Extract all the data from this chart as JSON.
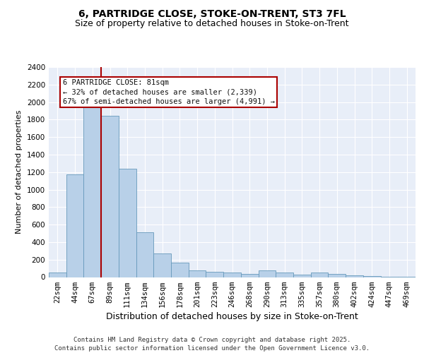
{
  "title_line1": "6, PARTRIDGE CLOSE, STOKE-ON-TRENT, ST3 7FL",
  "title_line2": "Size of property relative to detached houses in Stoke-on-Trent",
  "xlabel": "Distribution of detached houses by size in Stoke-on-Trent",
  "ylabel": "Number of detached properties",
  "footer_line1": "Contains HM Land Registry data © Crown copyright and database right 2025.",
  "footer_line2": "Contains public sector information licensed under the Open Government Licence v3.0.",
  "annotation_line1": "6 PARTRIDGE CLOSE: 81sqm",
  "annotation_line2": "← 32% of detached houses are smaller (2,339)",
  "annotation_line3": "67% of semi-detached houses are larger (4,991) →",
  "bar_values": [
    50,
    1175,
    1960,
    1840,
    1240,
    510,
    270,
    165,
    75,
    60,
    50,
    40,
    75,
    55,
    30,
    50,
    40,
    20,
    10,
    5,
    2
  ],
  "categories": [
    "22sqm",
    "44sqm",
    "67sqm",
    "89sqm",
    "111sqm",
    "134sqm",
    "156sqm",
    "178sqm",
    "201sqm",
    "223sqm",
    "246sqm",
    "268sqm",
    "290sqm",
    "313sqm",
    "335sqm",
    "357sqm",
    "380sqm",
    "402sqm",
    "424sqm",
    "447sqm",
    "469sqm"
  ],
  "bar_color": "#b8d0e8",
  "bar_edge_color": "#6699bb",
  "vline_color": "#aa0000",
  "vline_x": 2.5,
  "annotation_box_edge_color": "#aa0000",
  "plot_bg_color": "#e8eef8",
  "grid_color": "#ffffff",
  "fig_bg_color": "#ffffff",
  "ylim": [
    0,
    2400
  ],
  "yticks": [
    0,
    200,
    400,
    600,
    800,
    1000,
    1200,
    1400,
    1600,
    1800,
    2000,
    2200,
    2400
  ],
  "title1_fontsize": 10,
  "title2_fontsize": 9,
  "ylabel_fontsize": 8,
  "xlabel_fontsize": 9,
  "tick_fontsize": 7.5,
  "footer_fontsize": 6.5,
  "ann_fontsize": 7.5
}
